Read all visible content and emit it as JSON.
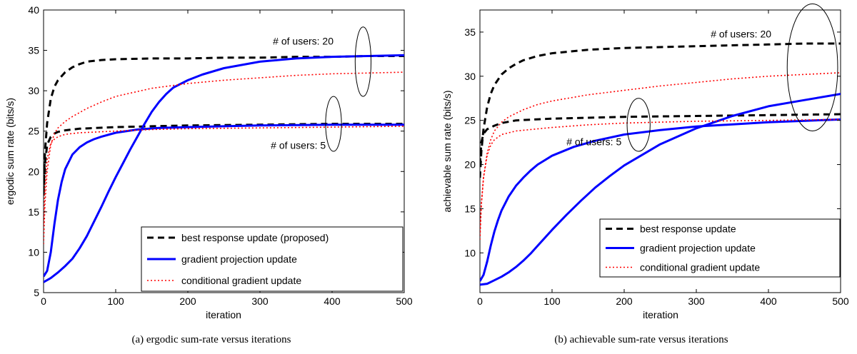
{
  "chart_data": [
    {
      "type": "line",
      "caption": "(a) ergodic sum-rate versus iterations",
      "xlabel": "iteration",
      "ylabel": "ergodic sum rate (bits/s)",
      "xlim": [
        0,
        500
      ],
      "ylim": [
        5,
        40
      ],
      "xticks": [
        0,
        100,
        200,
        300,
        400,
        500
      ],
      "yticks": [
        5,
        10,
        15,
        20,
        25,
        30,
        35,
        40
      ],
      "grid": false,
      "legend_position": "bottom-right",
      "legend": [
        "best response update (proposed)",
        "gradient projection update",
        "conditional gradient update"
      ],
      "annotations": [
        {
          "text": "# of users: 20",
          "x": 318,
          "y": 35.7
        },
        {
          "text": "# of users: 5",
          "x": 315,
          "y": 22.8
        }
      ],
      "ellipses": [
        {
          "cx": 443,
          "cy": 33.6,
          "rx": 11,
          "ry": 4.3
        },
        {
          "cx": 402,
          "cy": 25.9,
          "rx": 11,
          "ry": 3.4
        }
      ],
      "series": [
        {
          "name": "best response update (proposed)",
          "style": "dashed",
          "color": "#000000",
          "x": [
            0,
            2,
            5,
            10,
            15,
            20,
            30,
            40,
            50,
            60,
            80,
            100,
            150,
            200,
            250,
            300,
            350,
            400,
            450,
            500
          ],
          "y": [
            17.5,
            22.5,
            26.0,
            29.0,
            30.5,
            31.3,
            32.3,
            32.9,
            33.3,
            33.6,
            33.8,
            33.9,
            34.0,
            34.0,
            34.1,
            34.1,
            34.2,
            34.2,
            34.3,
            34.3
          ]
        },
        {
          "name": "best response update (proposed)",
          "style": "dashed",
          "color": "#000000",
          "x": [
            0,
            2,
            5,
            10,
            15,
            20,
            30,
            50,
            100,
            150,
            200,
            300,
            400,
            500
          ],
          "y": [
            17.0,
            21.0,
            23.3,
            24.3,
            24.7,
            24.9,
            25.1,
            25.3,
            25.5,
            25.6,
            25.7,
            25.8,
            25.9,
            25.9
          ]
        },
        {
          "name": "gradient projection update",
          "style": "solid",
          "color": "#0000ff",
          "x": [
            0,
            10,
            20,
            30,
            40,
            50,
            60,
            70,
            80,
            90,
            100,
            110,
            120,
            130,
            140,
            150,
            160,
            170,
            180,
            200,
            220,
            250,
            300,
            350,
            400,
            450,
            500
          ],
          "y": [
            6.3,
            6.8,
            7.5,
            8.3,
            9.2,
            10.5,
            12.0,
            13.8,
            15.6,
            17.5,
            19.3,
            21.0,
            22.7,
            24.3,
            25.9,
            27.4,
            28.6,
            29.6,
            30.4,
            31.3,
            32.0,
            32.8,
            33.6,
            34.0,
            34.2,
            34.3,
            34.4
          ]
        },
        {
          "name": "gradient projection update",
          "style": "solid",
          "color": "#0000ff",
          "x": [
            0,
            5,
            10,
            15,
            20,
            25,
            30,
            40,
            50,
            60,
            70,
            80,
            100,
            130,
            160,
            200,
            250,
            300,
            400,
            500
          ],
          "y": [
            7.0,
            7.7,
            10.0,
            13.5,
            16.5,
            18.7,
            20.3,
            22.1,
            23.0,
            23.6,
            24.0,
            24.3,
            24.8,
            25.2,
            25.4,
            25.5,
            25.6,
            25.7,
            25.8,
            25.8
          ]
        },
        {
          "name": "conditional gradient update",
          "style": "dotted",
          "color": "#ff0000",
          "x": [
            0,
            2,
            5,
            10,
            15,
            20,
            30,
            40,
            50,
            60,
            80,
            100,
            150,
            200,
            250,
            300,
            350,
            400,
            450,
            500
          ],
          "y": [
            11.0,
            16.0,
            20.0,
            23.3,
            24.7,
            25.4,
            26.2,
            26.8,
            27.3,
            27.8,
            28.6,
            29.3,
            30.3,
            30.9,
            31.3,
            31.6,
            31.9,
            32.1,
            32.2,
            32.3
          ]
        },
        {
          "name": "conditional gradient update",
          "style": "dotted",
          "color": "#ff0000",
          "x": [
            0,
            2,
            5,
            10,
            15,
            20,
            30,
            50,
            100,
            150,
            200,
            300,
            400,
            500
          ],
          "y": [
            13.5,
            18.0,
            21.5,
            23.5,
            24.0,
            24.3,
            24.6,
            24.8,
            25.0,
            25.2,
            25.3,
            25.4,
            25.5,
            25.6
          ]
        }
      ]
    },
    {
      "type": "line",
      "caption": "(b) achievable sum-rate versus iterations",
      "xlabel": "iteration",
      "ylabel": "achievable sum rate (bits/s)",
      "xlim": [
        0,
        500
      ],
      "ylim": [
        5.5,
        37.5
      ],
      "xticks": [
        0,
        100,
        200,
        300,
        400,
        500
      ],
      "yticks": [
        10,
        15,
        20,
        25,
        30,
        35
      ],
      "grid": false,
      "legend_position": "bottom-right",
      "legend": [
        "best response update",
        "gradient projection update",
        "conditional gradient update"
      ],
      "annotations": [
        {
          "text": "# of users: 20",
          "x": 320,
          "y": 34.4
        },
        {
          "text": "# of users: 5",
          "x": 120,
          "y": 22.2
        }
      ],
      "ellipses": [
        {
          "cx": 461,
          "cy": 31.0,
          "rx": 35,
          "ry": 7.2
        },
        {
          "cx": 220,
          "cy": 24.5,
          "rx": 16,
          "ry": 3.0
        }
      ],
      "series": [
        {
          "name": "best response update",
          "style": "dashed",
          "color": "#000000",
          "x": [
            0,
            2,
            5,
            10,
            15,
            20,
            30,
            40,
            50,
            60,
            80,
            100,
            150,
            200,
            250,
            300,
            350,
            400,
            450,
            500
          ],
          "y": [
            18.5,
            21.5,
            24.0,
            26.5,
            28.0,
            29.0,
            30.2,
            30.9,
            31.4,
            31.8,
            32.3,
            32.6,
            33.0,
            33.2,
            33.3,
            33.4,
            33.5,
            33.6,
            33.7,
            33.7
          ]
        },
        {
          "name": "best response update",
          "style": "dashed",
          "color": "#000000",
          "x": [
            0,
            2,
            5,
            10,
            20,
            30,
            50,
            100,
            150,
            200,
            300,
            400,
            500
          ],
          "y": [
            20.0,
            22.5,
            23.5,
            24.0,
            24.4,
            24.7,
            25.0,
            25.2,
            25.3,
            25.4,
            25.5,
            25.6,
            25.7
          ]
        },
        {
          "name": "gradient projection update",
          "style": "solid",
          "color": "#0000ff",
          "x": [
            0,
            10,
            20,
            30,
            40,
            50,
            60,
            70,
            80,
            90,
            100,
            120,
            140,
            160,
            180,
            200,
            250,
            300,
            350,
            400,
            450,
            500
          ],
          "y": [
            6.4,
            6.5,
            6.9,
            7.3,
            7.8,
            8.4,
            9.1,
            9.9,
            10.8,
            11.7,
            12.6,
            14.3,
            15.9,
            17.4,
            18.7,
            19.9,
            22.3,
            24.1,
            25.5,
            26.6,
            27.3,
            28.0
          ]
        },
        {
          "name": "gradient projection update",
          "style": "solid",
          "color": "#0000ff",
          "x": [
            0,
            5,
            10,
            15,
            20,
            25,
            30,
            40,
            50,
            60,
            70,
            80,
            100,
            130,
            160,
            200,
            250,
            300,
            400,
            500
          ],
          "y": [
            6.8,
            7.5,
            9.0,
            10.8,
            12.4,
            13.7,
            14.8,
            16.4,
            17.6,
            18.5,
            19.3,
            20.0,
            21.0,
            22.0,
            22.7,
            23.4,
            23.9,
            24.3,
            24.8,
            25.1
          ]
        },
        {
          "name": "conditional gradient update",
          "style": "dotted",
          "color": "#ff0000",
          "x": [
            0,
            2,
            5,
            10,
            15,
            20,
            30,
            40,
            50,
            60,
            80,
            100,
            150,
            200,
            250,
            300,
            350,
            400,
            450,
            500
          ],
          "y": [
            11.5,
            15.5,
            18.5,
            21.3,
            22.8,
            23.8,
            24.8,
            25.4,
            25.8,
            26.2,
            26.8,
            27.2,
            27.9,
            28.4,
            28.9,
            29.3,
            29.7,
            30.0,
            30.2,
            30.4
          ]
        },
        {
          "name": "conditional gradient update",
          "style": "dotted",
          "color": "#ff0000",
          "x": [
            0,
            2,
            5,
            10,
            15,
            20,
            30,
            50,
            100,
            150,
            200,
            300,
            400,
            500
          ],
          "y": [
            12.0,
            15.5,
            18.5,
            21.0,
            22.2,
            22.8,
            23.4,
            23.8,
            24.2,
            24.5,
            24.7,
            24.9,
            25.0,
            25.1
          ]
        }
      ]
    }
  ]
}
